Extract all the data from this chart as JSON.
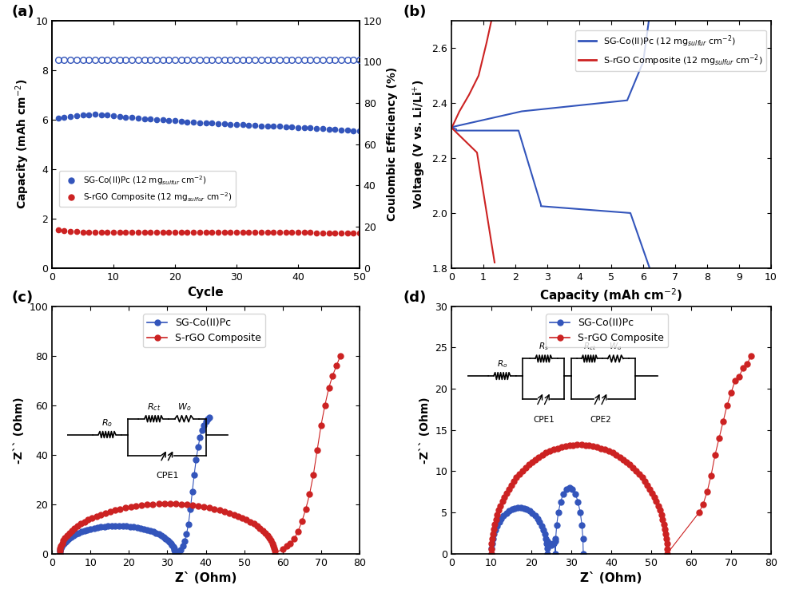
{
  "panel_a": {
    "xlabel": "Cycle",
    "ylabel_left": "Capacity (mAh cm$^{-2}$)",
    "ylabel_right": "Coulombic Efficiency (%)",
    "xlim": [
      0,
      50
    ],
    "ylim_left": [
      0,
      10
    ],
    "ylim_right": [
      0,
      120
    ],
    "xticks": [
      0,
      10,
      20,
      30,
      40,
      50
    ],
    "yticks_left": [
      0,
      2,
      4,
      6,
      8,
      10
    ],
    "yticks_right": [
      0,
      20,
      40,
      60,
      80,
      100,
      120
    ],
    "legend_labels": [
      "SG-Co(II)Pc (12 mg$_{sulfur}$ cm$^{-2}$)",
      "S-rGO Composite (12 mg$_{sulfur}$ cm$^{-2}$)"
    ],
    "blue_color": "#3355BB",
    "red_color": "#CC2222"
  },
  "panel_b": {
    "xlabel": "Capacity (mAh cm$^{-2}$)",
    "ylabel": "Voltage (V vs. Li/Li$^{+}$)",
    "xlim": [
      0,
      10
    ],
    "ylim": [
      1.8,
      2.7
    ],
    "xticks": [
      0,
      1,
      2,
      3,
      4,
      5,
      6,
      7,
      8,
      9,
      10
    ],
    "yticks": [
      1.8,
      2.0,
      2.2,
      2.4,
      2.6
    ],
    "legend_labels": [
      "SG-Co(II)Pc (12 mg$_{sulfur}$ cm$^{-2}$)",
      "S-rGO Composite (12 mg$_{sulfur}$ cm$^{-2}$)"
    ],
    "blue_color": "#3355BB",
    "red_color": "#CC2222"
  },
  "panel_c": {
    "xlabel": "Z` (Ohm)",
    "ylabel": "-Z`` (Ohm)",
    "xlim": [
      0,
      80
    ],
    "ylim": [
      0,
      100
    ],
    "xticks": [
      0,
      10,
      20,
      30,
      40,
      50,
      60,
      70,
      80
    ],
    "yticks": [
      0,
      20,
      40,
      60,
      80,
      100
    ],
    "legend_labels": [
      "SG-Co(II)Pc",
      "S-rGO Composite"
    ],
    "blue_color": "#3355BB",
    "red_color": "#CC2222"
  },
  "panel_d": {
    "xlabel": "Z` (Ohm)",
    "ylabel": "-Z`` (Ohm)",
    "xlim": [
      0,
      80
    ],
    "ylim": [
      0,
      30
    ],
    "xticks": [
      0,
      10,
      20,
      30,
      40,
      50,
      60,
      70,
      80
    ],
    "yticks": [
      0,
      5,
      10,
      15,
      20,
      25,
      30
    ],
    "legend_labels": [
      "SG-Co(II)Pc",
      "S-rGO Composite"
    ],
    "blue_color": "#3355BB",
    "red_color": "#CC2222"
  },
  "figure_bg": "#FFFFFF"
}
